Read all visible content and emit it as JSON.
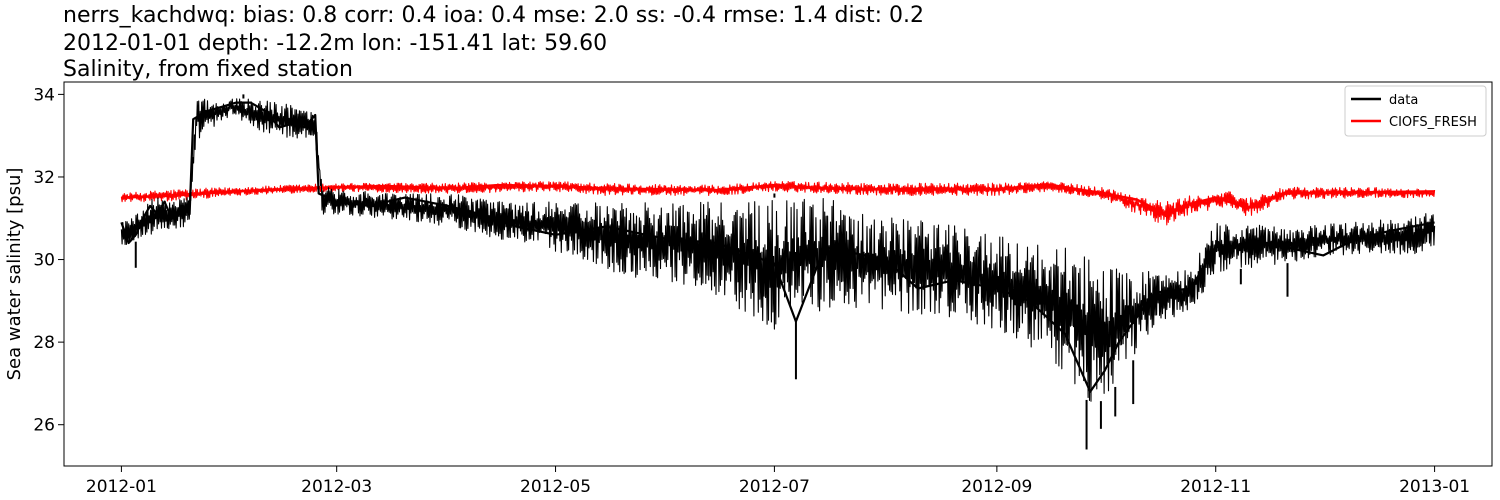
{
  "chart_data": {
    "type": "line",
    "title_lines": [
      "nerrs_kachdwq: bias: 0.8  corr: 0.4  ioa: 0.4  mse: 2.0  ss: -0.4  rmse: 1.4  dist: 0.2",
      "2012-01-01 depth: -12.2m lon: -151.41 lat: 59.60",
      "Salinity, from fixed station"
    ],
    "xlabel": "",
    "ylabel": "Sea water salinity [psu]",
    "xlim": [
      "2011-12-16",
      "2013-01-17"
    ],
    "ylim": [
      25.0,
      34.3
    ],
    "x_ticks": [
      "2012-01",
      "2012-03",
      "2012-05",
      "2012-07",
      "2012-09",
      "2012-11",
      "2013-01"
    ],
    "y_ticks": [
      26,
      28,
      30,
      32,
      34
    ],
    "grid": false,
    "legend_position": "upper right",
    "series": [
      {
        "name": "data",
        "color": "#000000",
        "points": [
          [
            "2012-01-01",
            30.9
          ],
          [
            "2012-01-03",
            30.4
          ],
          [
            "2012-01-05",
            30.6
          ],
          [
            "2012-01-07",
            31.0
          ],
          [
            "2012-01-09",
            31.3
          ],
          [
            "2012-01-11",
            31.1
          ],
          [
            "2012-01-13",
            31.4
          ],
          [
            "2012-01-15",
            31.0
          ],
          [
            "2012-01-18",
            31.3
          ],
          [
            "2012-01-20",
            31.1
          ],
          [
            "2012-01-21",
            33.4
          ],
          [
            "2012-01-25",
            33.6
          ],
          [
            "2012-01-29",
            33.7
          ],
          [
            "2012-02-02",
            33.8
          ],
          [
            "2012-02-06",
            33.8
          ],
          [
            "2012-02-10",
            33.6
          ],
          [
            "2012-02-14",
            33.2
          ],
          [
            "2012-02-18",
            33.3
          ],
          [
            "2012-02-21",
            33.2
          ],
          [
            "2012-02-24",
            33.5
          ],
          [
            "2012-02-25",
            31.6
          ],
          [
            "2012-03-01",
            31.4
          ],
          [
            "2012-03-10",
            31.3
          ],
          [
            "2012-03-20",
            31.5
          ],
          [
            "2012-04-01",
            31.3
          ],
          [
            "2012-04-10",
            31.1
          ],
          [
            "2012-04-20",
            30.8
          ],
          [
            "2012-05-01",
            30.6
          ],
          [
            "2012-05-15",
            30.8
          ],
          [
            "2012-06-01",
            30.5
          ],
          [
            "2012-06-15",
            30.4
          ],
          [
            "2012-07-01",
            29.9
          ],
          [
            "2012-07-07",
            28.5
          ],
          [
            "2012-07-15",
            30.3
          ],
          [
            "2012-08-01",
            30.0
          ],
          [
            "2012-08-10",
            29.3
          ],
          [
            "2012-08-20",
            29.5
          ],
          [
            "2012-09-01",
            29.3
          ],
          [
            "2012-09-10",
            29.0
          ],
          [
            "2012-09-20",
            28.2
          ],
          [
            "2012-09-27",
            26.8
          ],
          [
            "2012-10-01",
            27.3
          ],
          [
            "2012-10-05",
            28.0
          ],
          [
            "2012-10-15",
            29.2
          ],
          [
            "2012-10-25",
            29.3
          ],
          [
            "2012-11-01",
            30.3
          ],
          [
            "2012-11-15",
            30.4
          ],
          [
            "2012-12-01",
            30.1
          ],
          [
            "2012-12-10",
            30.5
          ],
          [
            "2012-12-20",
            30.7
          ],
          [
            "2013-01-01",
            30.9
          ]
        ],
        "band": [
          [
            "2012-01-01",
            30.3,
            30.9
          ],
          [
            "2012-01-10",
            30.6,
            31.5
          ],
          [
            "2012-01-20",
            30.8,
            31.5
          ],
          [
            "2012-01-22",
            32.9,
            33.9
          ],
          [
            "2012-02-01",
            33.5,
            33.9
          ],
          [
            "2012-02-10",
            33.0,
            33.9
          ],
          [
            "2012-02-24",
            32.9,
            33.6
          ],
          [
            "2012-02-26",
            31.1,
            31.8
          ],
          [
            "2012-03-15",
            31.0,
            31.6
          ],
          [
            "2012-04-01",
            30.8,
            31.6
          ],
          [
            "2012-04-20",
            30.4,
            31.4
          ],
          [
            "2012-05-01",
            30.2,
            31.4
          ],
          [
            "2012-05-20",
            29.6,
            31.4
          ],
          [
            "2012-06-01",
            29.5,
            31.4
          ],
          [
            "2012-06-15",
            29.1,
            31.4
          ],
          [
            "2012-07-01",
            28.3,
            31.5
          ],
          [
            "2012-07-15",
            28.8,
            31.5
          ],
          [
            "2012-08-01",
            28.7,
            31.1
          ],
          [
            "2012-08-20",
            28.6,
            30.9
          ],
          [
            "2012-09-01",
            28.2,
            30.6
          ],
          [
            "2012-09-15",
            27.7,
            30.5
          ],
          [
            "2012-09-28",
            26.4,
            30.0
          ],
          [
            "2012-10-05",
            27.0,
            29.8
          ],
          [
            "2012-10-15",
            28.4,
            29.7
          ],
          [
            "2012-10-25",
            28.7,
            29.8
          ],
          [
            "2012-11-01",
            29.7,
            30.9
          ],
          [
            "2012-11-20",
            29.9,
            30.8
          ],
          [
            "2012-12-05",
            30.1,
            30.9
          ],
          [
            "2012-12-25",
            30.1,
            31.0
          ],
          [
            "2013-01-01",
            30.3,
            31.2
          ]
        ],
        "extremes": [
          [
            "2012-01-05",
            29.8
          ],
          [
            "2012-02-04",
            34.0
          ],
          [
            "2012-07-07",
            27.1
          ],
          [
            "2012-07-01",
            31.6
          ],
          [
            "2012-09-26",
            25.4
          ],
          [
            "2012-09-30",
            25.9
          ],
          [
            "2012-10-04",
            26.2
          ],
          [
            "2012-10-09",
            26.5
          ],
          [
            "2012-11-08",
            29.4
          ],
          [
            "2012-11-21",
            29.1
          ]
        ]
      },
      {
        "name": "CIOFS_FRESH",
        "color": "#ff0000",
        "points": [
          [
            "2012-01-01",
            31.5
          ],
          [
            "2012-01-15",
            31.55
          ],
          [
            "2012-02-01",
            31.65
          ],
          [
            "2012-02-15",
            31.7
          ],
          [
            "2012-03-01",
            31.75
          ],
          [
            "2012-03-15",
            31.78
          ],
          [
            "2012-04-01",
            31.72
          ],
          [
            "2012-04-15",
            31.8
          ],
          [
            "2012-05-01",
            31.78
          ],
          [
            "2012-05-15",
            31.72
          ],
          [
            "2012-06-01",
            31.7
          ],
          [
            "2012-06-15",
            31.68
          ],
          [
            "2012-07-01",
            31.8
          ],
          [
            "2012-07-15",
            31.72
          ],
          [
            "2012-08-01",
            31.7
          ],
          [
            "2012-08-15",
            31.72
          ],
          [
            "2012-09-01",
            31.7
          ],
          [
            "2012-09-15",
            31.82
          ],
          [
            "2012-10-01",
            31.6
          ],
          [
            "2012-10-10",
            31.45
          ],
          [
            "2012-10-18",
            31.1
          ],
          [
            "2012-10-25",
            31.35
          ],
          [
            "2012-11-01",
            31.5
          ],
          [
            "2012-11-10",
            31.25
          ],
          [
            "2012-11-20",
            31.6
          ],
          [
            "2012-12-01",
            31.62
          ],
          [
            "2012-12-15",
            31.63
          ],
          [
            "2013-01-01",
            31.65
          ]
        ],
        "band": [
          [
            "2012-01-01",
            31.4,
            31.6
          ],
          [
            "2012-01-15",
            31.4,
            31.7
          ],
          [
            "2012-02-01",
            31.55,
            31.75
          ],
          [
            "2012-03-01",
            31.65,
            31.85
          ],
          [
            "2012-04-01",
            31.6,
            31.85
          ],
          [
            "2012-05-01",
            31.65,
            31.9
          ],
          [
            "2012-05-15",
            31.55,
            31.85
          ],
          [
            "2012-06-15",
            31.55,
            31.8
          ],
          [
            "2012-07-01",
            31.65,
            31.9
          ],
          [
            "2012-08-01",
            31.55,
            31.85
          ],
          [
            "2012-09-01",
            31.55,
            31.85
          ],
          [
            "2012-09-15",
            31.65,
            31.9
          ],
          [
            "2012-10-01",
            31.45,
            31.75
          ],
          [
            "2012-10-18",
            30.8,
            31.4
          ],
          [
            "2012-10-25",
            31.1,
            31.55
          ],
          [
            "2012-11-05",
            31.3,
            31.65
          ],
          [
            "2012-11-10",
            31.0,
            31.5
          ],
          [
            "2012-11-20",
            31.45,
            31.75
          ],
          [
            "2012-12-15",
            31.5,
            31.75
          ],
          [
            "2013-01-01",
            31.5,
            31.7
          ]
        ]
      }
    ]
  }
}
